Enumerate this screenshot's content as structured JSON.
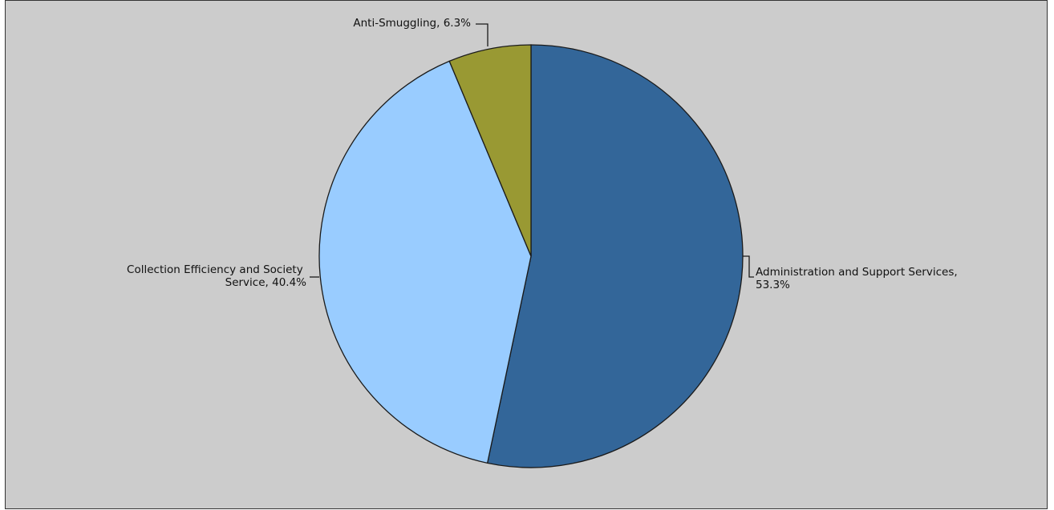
{
  "chart_data": {
    "type": "pie",
    "title": "",
    "legend": "none",
    "slices": [
      {
        "label_lines": [
          "Administration and Support Services,",
          "53.3%"
        ],
        "category": "Administration and Support Services",
        "value": 53.3,
        "color": "#336699"
      },
      {
        "label_lines": [
          "Collection Efficiency and Society",
          "Service, 40.4%"
        ],
        "category": "Collection Efficiency and Society Service",
        "value": 40.4,
        "color": "#99ccff"
      },
      {
        "label_lines": [
          "Anti-Smuggling, 6.3%"
        ],
        "category": "Anti-Smuggling",
        "value": 6.3,
        "color": "#999933"
      }
    ]
  }
}
